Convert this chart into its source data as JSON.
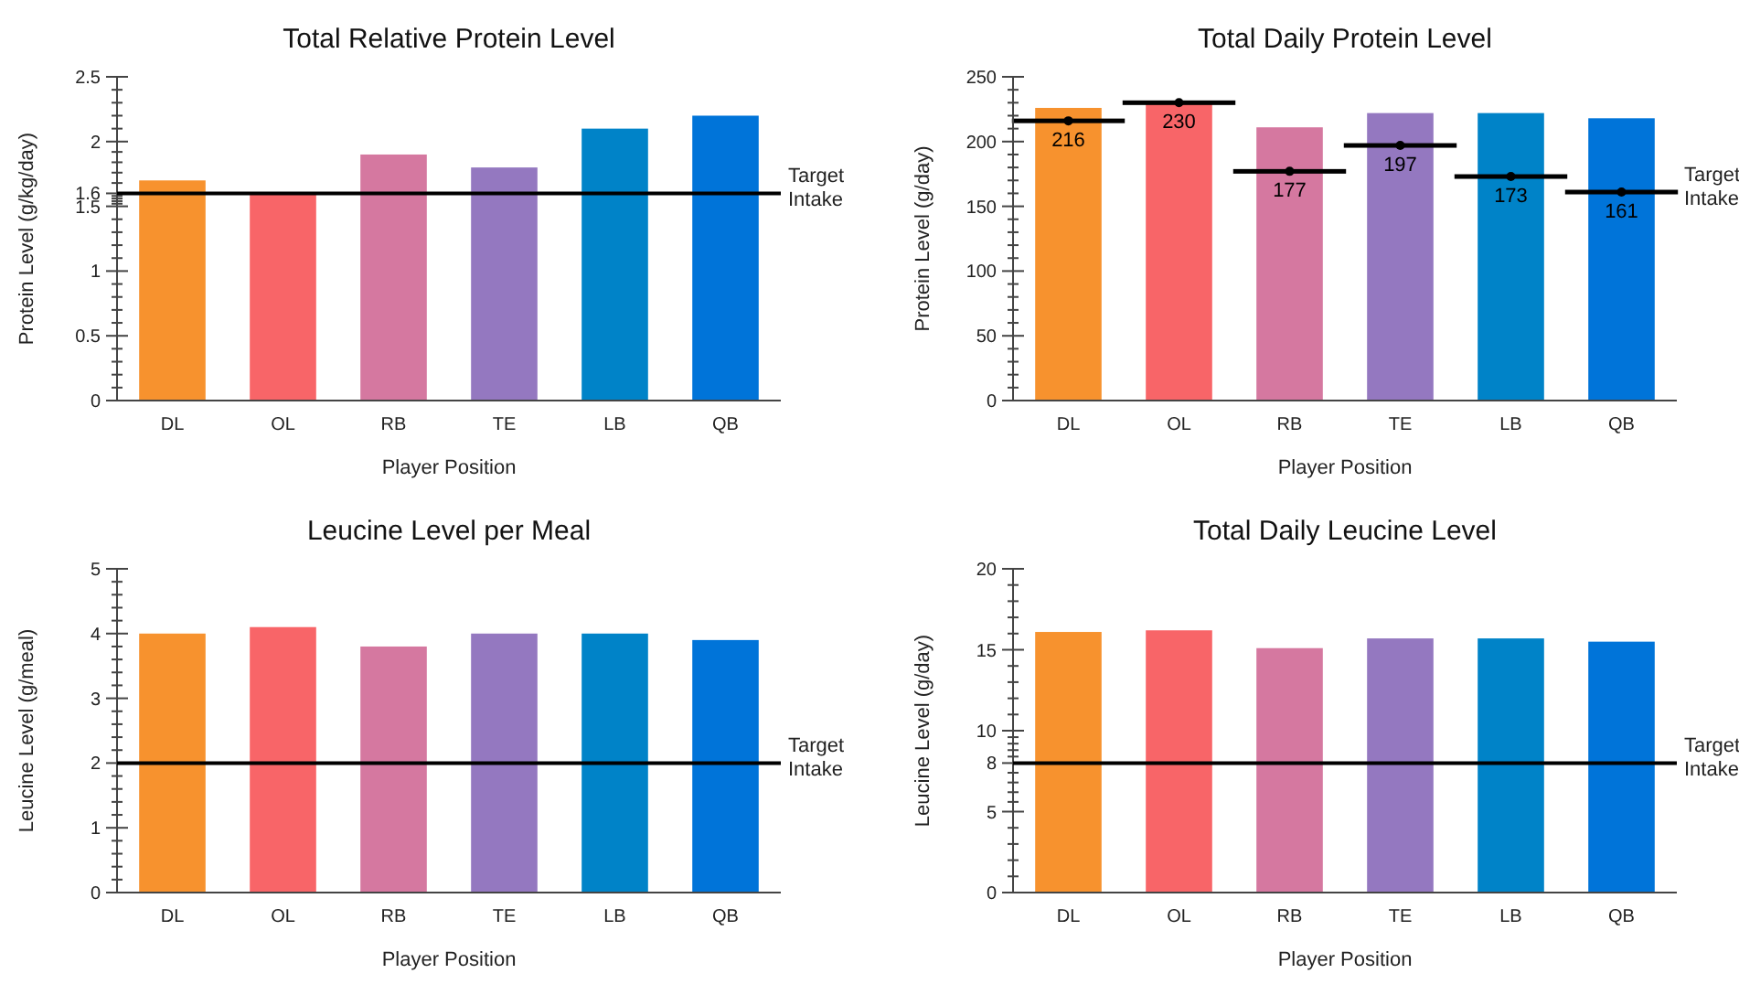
{
  "chart_data": [
    {
      "type": "bar",
      "title": "Total Relative Protein Level",
      "xlabel": "Player Position",
      "ylabel": "Protein Level (g/kg/day)",
      "categories": [
        "DL",
        "OL",
        "RB",
        "TE",
        "LB",
        "QB"
      ],
      "values": [
        1.7,
        1.6,
        1.9,
        1.8,
        2.1,
        2.2
      ],
      "colors": [
        "#f7922e",
        "#f86568",
        "#d578a0",
        "#9478c0",
        "#0083c8",
        "#0074d9"
      ],
      "ylim": [
        0,
        2.5
      ],
      "yticks": [
        0,
        0.5,
        1,
        1.5,
        1.6,
        2,
        2.5
      ],
      "ref_lines": [
        {
          "axis": "y",
          "value": 1.6,
          "label": "Target Intake",
          "color": "#000000"
        }
      ]
    },
    {
      "type": "bar",
      "title": "Total Daily Protein Level",
      "xlabel": "Player Position",
      "ylabel": "Protein Level (g/day)",
      "categories": [
        "DL",
        "OL",
        "RB",
        "TE",
        "LB",
        "QB"
      ],
      "series": [
        {
          "values": [
            226,
            230,
            211,
            222,
            222,
            218
          ],
          "colors": [
            "#f7922e",
            "#f86568",
            "#d578a0",
            "#9478c0",
            "#0083c8",
            "#0074d9"
          ]
        },
        {
          "name": "Target Intake",
          "type": "scatter",
          "color": "#000000",
          "values": [
            216,
            230,
            177,
            197,
            173,
            161
          ],
          "data_labels": true
        }
      ],
      "ylim": [
        0,
        250
      ],
      "yticks": [
        0,
        50,
        100,
        150,
        200,
        250
      ]
    },
    {
      "type": "bar",
      "title": "Leucine Level per Meal",
      "xlabel": "Player Position",
      "ylabel": "Leucine Level  (g/meal)",
      "categories": [
        "DL",
        "OL",
        "RB",
        "TE",
        "LB",
        "QB"
      ],
      "values": [
        4.0,
        4.1,
        3.8,
        4.0,
        4.0,
        3.9
      ],
      "colors": [
        "#f7922e",
        "#f86568",
        "#d578a0",
        "#9478c0",
        "#0083c8",
        "#0074d9"
      ],
      "ylim": [
        0,
        5
      ],
      "yticks": [
        0,
        1,
        2,
        3,
        4,
        5
      ],
      "ref_lines": [
        {
          "axis": "y",
          "value": 2,
          "label": "Target Intake",
          "color": "#000000"
        }
      ]
    },
    {
      "type": "bar",
      "title": "Total Daily Leucine Level",
      "xlabel": "Player Position",
      "ylabel": "Leucine Level (g/day)",
      "categories": [
        "DL",
        "OL",
        "RB",
        "TE",
        "LB",
        "QB"
      ],
      "values": [
        16.1,
        16.2,
        15.1,
        15.7,
        15.7,
        15.5
      ],
      "colors": [
        "#f7922e",
        "#f86568",
        "#d578a0",
        "#9478c0",
        "#0083c8",
        "#0074d9"
      ],
      "ylim": [
        0,
        20
      ],
      "yticks": [
        0,
        5,
        8,
        10,
        15,
        20
      ],
      "ref_lines": [
        {
          "axis": "y",
          "value": 8,
          "label": "Target Intake",
          "color": "#000000"
        }
      ]
    }
  ]
}
